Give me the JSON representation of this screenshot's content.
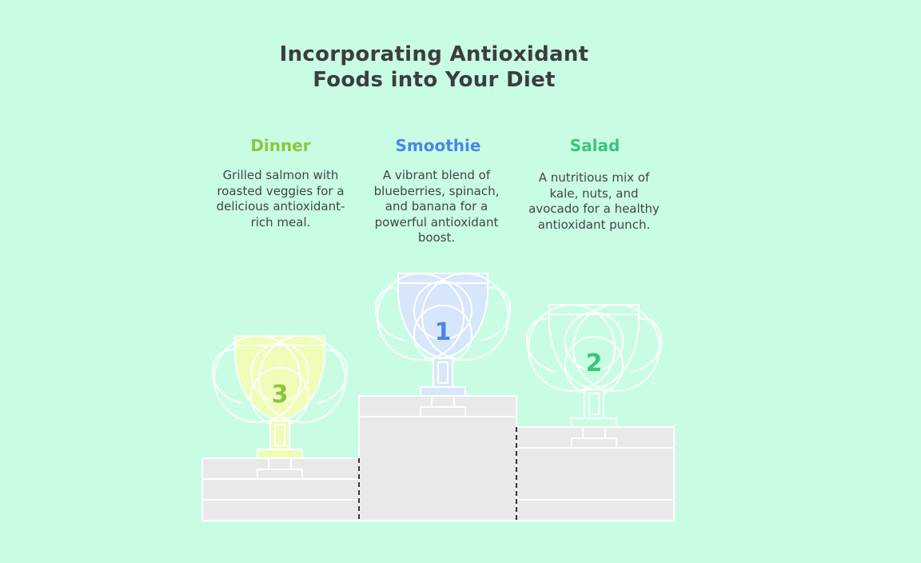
{
  "title": {
    "line1": "Incorporating Antioxidant",
    "line2": "Foods into Your Diet"
  },
  "places": [
    {
      "rank": "3",
      "heading": "Dinner",
      "description": "Grilled salmon with roasted veggies for a delicious antioxidant-rich meal.",
      "color": "#8dc63f",
      "cup_color": "#eefdb8"
    },
    {
      "rank": "1",
      "heading": "Smoothie",
      "description": "A vibrant blend of blueberries, spinach, and banana for a powerful antioxidant boost.",
      "color": "#4a86e8",
      "cup_color": "#d8e6fb"
    },
    {
      "rank": "2",
      "heading": "Salad",
      "description": "A nutritious mix of kale, nuts, and avocado for a healthy antioxidant punch.",
      "color": "#3cc47c",
      "cup_color": "#c8fde4"
    }
  ],
  "colors": {
    "background": "#c8fde4",
    "podium": "#e9e9e9",
    "title": "#3d3d3d",
    "text": "#444444"
  }
}
